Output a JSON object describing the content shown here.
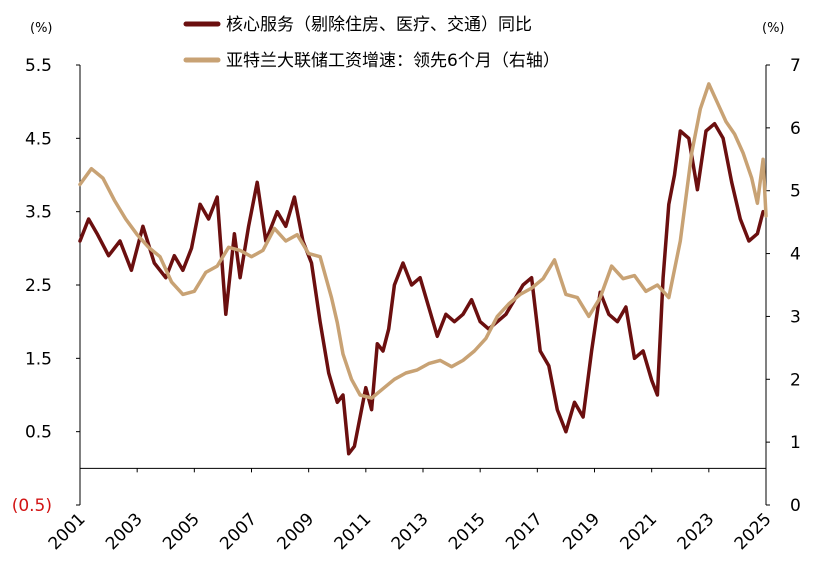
{
  "chart_data": {
    "type": "line",
    "title": "",
    "xlabel": "",
    "ylabel_left_unit": "(%)",
    "ylabel_right_unit": "(%)",
    "left_axis": {
      "ylim": [
        -0.5,
        5.5
      ],
      "ticks": [
        "5.5",
        "4.5",
        "3.5",
        "2.5",
        "1.5",
        "0.5",
        "(0.5)"
      ],
      "tick_values": [
        5.5,
        4.5,
        3.5,
        2.5,
        1.5,
        0.5,
        -0.5
      ],
      "negative_color": "#d21414"
    },
    "right_axis": {
      "ylim": [
        0,
        7
      ],
      "ticks": [
        "7",
        "6",
        "5",
        "4",
        "3",
        "2",
        "1",
        "0"
      ],
      "tick_values": [
        7,
        6,
        5,
        4,
        3,
        2,
        1,
        0
      ]
    },
    "x_range": [
      2001,
      2025
    ],
    "x_ticks": [
      "2001",
      "2003",
      "2005",
      "2007",
      "2009",
      "2011",
      "2013",
      "2015",
      "2017",
      "2019",
      "2021",
      "2023",
      "2025"
    ],
    "x_tick_values": [
      2001,
      2003,
      2005,
      2007,
      2009,
      2011,
      2013,
      2015,
      2017,
      2019,
      2021,
      2023,
      2025
    ],
    "grid": false,
    "legend_position": "top",
    "series": [
      {
        "name": "核心服务（剔除住房、医疗、交通）同比",
        "axis": "left",
        "color": "#6b0f0f",
        "x": [
          2001.0,
          2001.3,
          2001.6,
          2002.0,
          2002.4,
          2002.8,
          2003.2,
          2003.6,
          2004.0,
          2004.3,
          2004.6,
          2004.9,
          2005.2,
          2005.5,
          2005.8,
          2006.1,
          2006.4,
          2006.6,
          2006.9,
          2007.2,
          2007.5,
          2007.9,
          2008.2,
          2008.5,
          2008.8,
          2009.1,
          2009.4,
          2009.7,
          2010.0,
          2010.2,
          2010.4,
          2010.6,
          2010.8,
          2011.0,
          2011.2,
          2011.4,
          2011.6,
          2011.8,
          2012.0,
          2012.3,
          2012.6,
          2012.9,
          2013.2,
          2013.5,
          2013.8,
          2014.1,
          2014.4,
          2014.7,
          2015.0,
          2015.3,
          2015.6,
          2015.9,
          2016.2,
          2016.5,
          2016.8,
          2017.1,
          2017.4,
          2017.7,
          2018.0,
          2018.3,
          2018.6,
          2018.9,
          2019.2,
          2019.5,
          2019.8,
          2020.1,
          2020.4,
          2020.7,
          2021.0,
          2021.2,
          2021.4,
          2021.6,
          2021.8,
          2022.0,
          2022.3,
          2022.6,
          2022.9,
          2023.2,
          2023.5,
          2023.8,
          2024.1,
          2024.4,
          2024.7,
          2024.9
        ],
        "values": [
          3.1,
          3.4,
          3.2,
          2.9,
          3.1,
          2.7,
          3.3,
          2.8,
          2.6,
          2.9,
          2.7,
          3.0,
          3.6,
          3.4,
          3.7,
          2.1,
          3.2,
          2.6,
          3.3,
          3.9,
          3.1,
          3.5,
          3.3,
          3.7,
          3.1,
          2.8,
          2.0,
          1.3,
          0.9,
          1.0,
          0.2,
          0.3,
          0.7,
          1.1,
          0.8,
          1.7,
          1.6,
          1.9,
          2.5,
          2.8,
          2.5,
          2.6,
          2.2,
          1.8,
          2.1,
          2.0,
          2.1,
          2.3,
          2.0,
          1.9,
          2.0,
          2.1,
          2.3,
          2.5,
          2.6,
          1.6,
          1.4,
          0.8,
          0.5,
          0.9,
          0.7,
          1.6,
          2.4,
          2.1,
          2.0,
          2.2,
          1.5,
          1.6,
          1.2,
          1.0,
          2.6,
          3.6,
          4.0,
          4.6,
          4.5,
          3.8,
          4.6,
          4.7,
          4.5,
          3.9,
          3.4,
          3.1,
          3.2,
          3.5
        ]
      },
      {
        "name": "亚特兰大联储工资增速：领先6个月（右轴）",
        "axis": "right",
        "color": "#c8a274",
        "x": [
          2001.0,
          2001.4,
          2001.8,
          2002.2,
          2002.6,
          2003.0,
          2003.4,
          2003.8,
          2004.2,
          2004.6,
          2005.0,
          2005.4,
          2005.8,
          2006.2,
          2006.6,
          2007.0,
          2007.4,
          2007.8,
          2008.2,
          2008.6,
          2009.0,
          2009.4,
          2009.8,
          2010.0,
          2010.2,
          2010.5,
          2010.8,
          2011.2,
          2011.6,
          2012.0,
          2012.4,
          2012.8,
          2013.2,
          2013.6,
          2014.0,
          2014.4,
          2014.8,
          2015.2,
          2015.6,
          2016.0,
          2016.4,
          2016.8,
          2017.2,
          2017.6,
          2018.0,
          2018.4,
          2018.8,
          2019.2,
          2019.6,
          2020.0,
          2020.4,
          2020.8,
          2021.2,
          2021.6,
          2022.0,
          2022.4,
          2022.7,
          2023.0,
          2023.3,
          2023.6,
          2023.9,
          2024.2,
          2024.5,
          2024.7,
          2024.9,
          2025.0
        ],
        "values": [
          5.1,
          5.35,
          5.2,
          4.85,
          4.55,
          4.3,
          4.1,
          3.95,
          3.55,
          3.35,
          3.4,
          3.7,
          3.8,
          4.1,
          4.05,
          3.95,
          4.05,
          4.4,
          4.2,
          4.3,
          4.0,
          3.95,
          3.3,
          2.9,
          2.4,
          2.0,
          1.75,
          1.7,
          1.85,
          2.0,
          2.1,
          2.15,
          2.25,
          2.3,
          2.2,
          2.3,
          2.45,
          2.65,
          3.0,
          3.2,
          3.35,
          3.45,
          3.6,
          3.9,
          3.35,
          3.3,
          3.0,
          3.3,
          3.8,
          3.6,
          3.65,
          3.4,
          3.5,
          3.3,
          4.2,
          5.6,
          6.3,
          6.7,
          6.4,
          6.1,
          5.9,
          5.6,
          5.2,
          4.8,
          5.5,
          4.6
        ]
      }
    ]
  }
}
